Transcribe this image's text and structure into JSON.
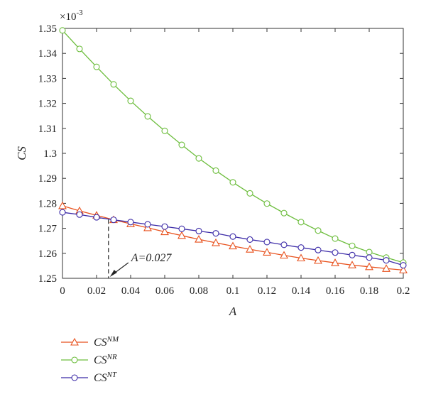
{
  "chart_data": {
    "type": "line",
    "xlabel": "A",
    "ylabel": "CS",
    "y_multiplier": "×10",
    "y_multiplier_exp": "-3",
    "xlim": [
      0,
      0.2
    ],
    "ylim": [
      1.25,
      1.35
    ],
    "x_ticks": [
      "0",
      "0.02",
      "0.04",
      "0.06",
      "0.08",
      "0.1",
      "0.12",
      "0.14",
      "0.16",
      "0.18",
      "0.2"
    ],
    "y_ticks": [
      "1.25",
      "1.26",
      "1.27",
      "1.28",
      "1.29",
      "1.3",
      "1.31",
      "1.32",
      "1.33",
      "1.34",
      "1.35"
    ],
    "grid": false,
    "legend_position": "below-left",
    "x": [
      0,
      0.01,
      0.02,
      0.03,
      0.04,
      0.05,
      0.06,
      0.07,
      0.08,
      0.09,
      0.1,
      0.11,
      0.12,
      0.13,
      0.14,
      0.15,
      0.16,
      0.17,
      0.18,
      0.19,
      0.2
    ],
    "series": [
      {
        "name_base": "CS",
        "name_sup": "NM",
        "color": "#e8521e",
        "marker": "triangle",
        "values": [
          1.279,
          1.277,
          1.2752,
          1.2734,
          1.2718,
          1.2702,
          1.2686,
          1.2671,
          1.2656,
          1.2642,
          1.2629,
          1.2616,
          1.2604,
          1.2592,
          1.2581,
          1.2571,
          1.2562,
          1.2553,
          1.2546,
          1.2539,
          1.2533
        ]
      },
      {
        "name_base": "CS",
        "name_sup": "NR",
        "color": "#6cbd3c",
        "marker": "circle",
        "values": [
          1.3492,
          1.3418,
          1.3346,
          1.3276,
          1.321,
          1.3148,
          1.309,
          1.3034,
          1.298,
          1.2931,
          1.2884,
          1.284,
          1.2799,
          1.2761,
          1.2725,
          1.2691,
          1.2659,
          1.263,
          1.2605,
          1.2583,
          1.2563
        ]
      },
      {
        "name_base": "CS",
        "name_sup": "NT",
        "color": "#3b2aa7",
        "marker": "circle",
        "values": [
          1.2764,
          1.2755,
          1.2744,
          1.2734,
          1.2725,
          1.2716,
          1.2707,
          1.2698,
          1.2689,
          1.268,
          1.2667,
          1.2655,
          1.2645,
          1.2634,
          1.2623,
          1.2613,
          1.2603,
          1.2593,
          1.2583,
          1.2572,
          1.2552
        ]
      }
    ],
    "annotations": [
      {
        "text": "A=0.027",
        "x": 0.027,
        "y": 1.2735,
        "style": "dashed-vertical-with-arrow"
      }
    ]
  }
}
